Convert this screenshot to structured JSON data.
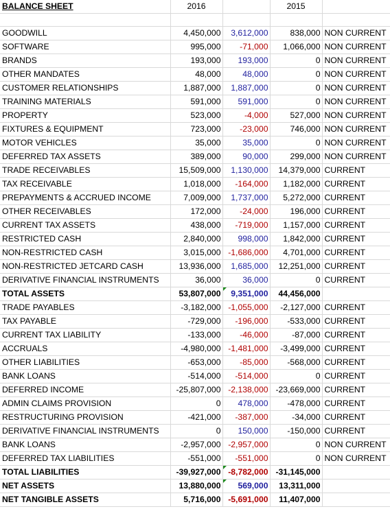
{
  "header": {
    "title": "BALANCE SHEET",
    "year_current": "2016",
    "year_prior": "2015"
  },
  "rows": [
    {
      "label": "GOODWILL",
      "y2016": "4,450,000",
      "change": "3,612,000",
      "sign": "pos",
      "y2015": "838,000",
      "class": "NON CURRENT"
    },
    {
      "label": "SOFTWARE",
      "y2016": "995,000",
      "change": "-71,000",
      "sign": "neg",
      "y2015": "1,066,000",
      "class": "NON CURRENT"
    },
    {
      "label": "BRANDS",
      "y2016": "193,000",
      "change": "193,000",
      "sign": "pos",
      "y2015": "0",
      "class": "NON CURRENT"
    },
    {
      "label": "OTHER MANDATES",
      "y2016": "48,000",
      "change": "48,000",
      "sign": "pos",
      "y2015": "0",
      "class": "NON CURRENT"
    },
    {
      "label": "CUSTOMER RELATIONSHIPS",
      "y2016": "1,887,000",
      "change": "1,887,000",
      "sign": "pos",
      "y2015": "0",
      "class": "NON CURRENT"
    },
    {
      "label": "TRAINING MATERIALS",
      "y2016": "591,000",
      "change": "591,000",
      "sign": "pos",
      "y2015": "0",
      "class": "NON CURRENT"
    },
    {
      "label": "PROPERTY",
      "y2016": "523,000",
      "change": "-4,000",
      "sign": "neg",
      "y2015": "527,000",
      "class": "NON CURRENT"
    },
    {
      "label": "FIXTURES & EQUIPMENT",
      "y2016": "723,000",
      "change": "-23,000",
      "sign": "neg",
      "y2015": "746,000",
      "class": "NON CURRENT"
    },
    {
      "label": "MOTOR VEHICLES",
      "y2016": "35,000",
      "change": "35,000",
      "sign": "pos",
      "y2015": "0",
      "class": "NON CURRENT"
    },
    {
      "label": "DEFERRED TAX ASSETS",
      "y2016": "389,000",
      "change": "90,000",
      "sign": "pos",
      "y2015": "299,000",
      "class": "NON CURRENT"
    },
    {
      "label": "TRADE RECEIVABLES",
      "y2016": "15,509,000",
      "change": "1,130,000",
      "sign": "pos",
      "y2015": "14,379,000",
      "class": "CURRENT"
    },
    {
      "label": "TAX RECEIVABLE",
      "y2016": "1,018,000",
      "change": "-164,000",
      "sign": "neg",
      "y2015": "1,182,000",
      "class": "CURRENT"
    },
    {
      "label": "PREPAYMENTS & ACCRUED INCOME",
      "y2016": "7,009,000",
      "change": "1,737,000",
      "sign": "pos",
      "y2015": "5,272,000",
      "class": "CURRENT"
    },
    {
      "label": "OTHER RECEIVABLES",
      "y2016": "172,000",
      "change": "-24,000",
      "sign": "neg",
      "y2015": "196,000",
      "class": "CURRENT"
    },
    {
      "label": "CURRENT TAX ASSETS",
      "y2016": "438,000",
      "change": "-719,000",
      "sign": "neg",
      "y2015": "1,157,000",
      "class": "CURRENT"
    },
    {
      "label": "RESTRICTED CASH",
      "y2016": "2,840,000",
      "change": "998,000",
      "sign": "pos",
      "y2015": "1,842,000",
      "class": "CURRENT"
    },
    {
      "label": "NON-RESTRICTED CASH",
      "y2016": "3,015,000",
      "change": "-1,686,000",
      "sign": "neg",
      "y2015": "4,701,000",
      "class": "CURRENT"
    },
    {
      "label": "NON-RESTRICTED JETCARD CASH",
      "y2016": "13,936,000",
      "change": "1,685,000",
      "sign": "pos",
      "y2015": "12,251,000",
      "class": "CURRENT"
    },
    {
      "label": "DERIVATIVE FINANCIAL INSTRUMENTS",
      "y2016": "36,000",
      "change": "36,000",
      "sign": "pos",
      "y2015": "0",
      "class": "CURRENT"
    },
    {
      "label": "TOTAL ASSETS",
      "y2016": "53,807,000",
      "change": "9,351,000",
      "sign": "pos",
      "y2015": "44,456,000",
      "class": "",
      "total": true,
      "flag": true
    },
    {
      "label": "TRADE PAYABLES",
      "y2016": "-3,182,000",
      "change": "-1,055,000",
      "sign": "neg",
      "y2015": "-2,127,000",
      "class": "CURRENT"
    },
    {
      "label": "TAX PAYABLE",
      "y2016": "-729,000",
      "change": "-196,000",
      "sign": "neg",
      "y2015": "-533,000",
      "class": "CURRENT"
    },
    {
      "label": "CURRENT TAX LIABILITY",
      "y2016": "-133,000",
      "change": "-46,000",
      "sign": "neg",
      "y2015": "-87,000",
      "class": "CURRENT"
    },
    {
      "label": "ACCRUALS",
      "y2016": "-4,980,000",
      "change": "-1,481,000",
      "sign": "neg",
      "y2015": "-3,499,000",
      "class": "CURRENT"
    },
    {
      "label": "OTHER LIABILITIES",
      "y2016": "-653,000",
      "change": "-85,000",
      "sign": "neg",
      "y2015": "-568,000",
      "class": "CURRENT"
    },
    {
      "label": "BANK LOANS",
      "y2016": "-514,000",
      "change": "-514,000",
      "sign": "neg",
      "y2015": "0",
      "class": "CURRENT"
    },
    {
      "label": "DEFERRED INCOME",
      "y2016": "-25,807,000",
      "change": "-2,138,000",
      "sign": "neg",
      "y2015": "-23,669,000",
      "class": "CURRENT"
    },
    {
      "label": "ADMIN CLAIMS PROVISION",
      "y2016": "0",
      "change": "478,000",
      "sign": "pos",
      "y2015": "-478,000",
      "class": "CURRENT"
    },
    {
      "label": "RESTRUCTURING PROVISION",
      "y2016": "-421,000",
      "change": "-387,000",
      "sign": "neg",
      "y2015": "-34,000",
      "class": "CURRENT"
    },
    {
      "label": "DERIVATIVE FINANCIAL INSTRUMENTS",
      "y2016": "0",
      "change": "150,000",
      "sign": "pos",
      "y2015": "-150,000",
      "class": "CURRENT"
    },
    {
      "label": "BANK LOANS",
      "y2016": "-2,957,000",
      "change": "-2,957,000",
      "sign": "neg",
      "y2015": "0",
      "class": "NON CURRENT"
    },
    {
      "label": "DEFERRED TAX LIABILITIES",
      "y2016": "-551,000",
      "change": "-551,000",
      "sign": "neg",
      "y2015": "0",
      "class": "NON CURRENT"
    },
    {
      "label": "TOTAL LIABILITIES",
      "y2016": "-39,927,000",
      "change": "-8,782,000",
      "sign": "neg",
      "y2015": "-31,145,000",
      "class": "",
      "total": true,
      "flag": true
    },
    {
      "label": "NET ASSETS",
      "y2016": "13,880,000",
      "change": "569,000",
      "sign": "pos",
      "y2015": "13,311,000",
      "class": "",
      "total": true,
      "flag": true
    },
    {
      "label": "NET TANGIBLE ASSETS",
      "y2016": "5,716,000",
      "change": "-5,691,000",
      "sign": "neg",
      "y2015": "11,407,000",
      "class": "",
      "total": true
    }
  ]
}
